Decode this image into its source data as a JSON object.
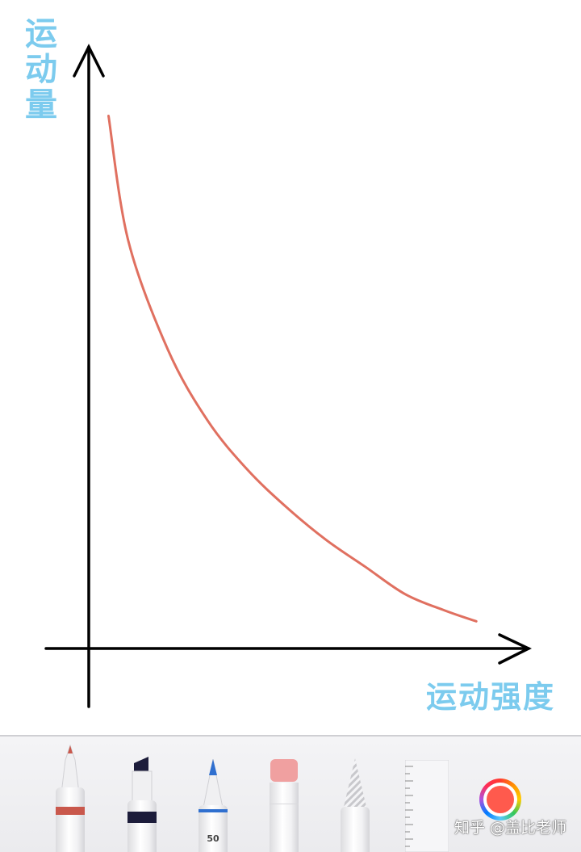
{
  "chart_data": {
    "type": "line",
    "title": "",
    "xlabel": "运动强度",
    "ylabel": "运动量",
    "grid": false,
    "legend": "none",
    "axes_ticks": false,
    "series": [
      {
        "color": "#e07060",
        "x": [
          0.05,
          0.1,
          0.2,
          0.3,
          0.4,
          0.5,
          0.6,
          0.7,
          0.8,
          0.9,
          0.98
        ],
        "y": [
          0.98,
          0.75,
          0.55,
          0.42,
          0.33,
          0.26,
          0.2,
          0.15,
          0.1,
          0.07,
          0.05
        ]
      }
    ],
    "xlim": [
      0,
      1.1
    ],
    "ylim": [
      0,
      1.1
    ]
  },
  "colors": {
    "axis": "#000000",
    "curve": "#e07060",
    "label": "#7ccbee",
    "selected_color": "#ff5a4d"
  },
  "toolbar": {
    "tools": [
      {
        "name": "pen",
        "icon": "pen-icon",
        "color": "#c9584c"
      },
      {
        "name": "marker",
        "icon": "marker-icon",
        "color": "#1c1c3a"
      },
      {
        "name": "pencil",
        "icon": "pencil-icon",
        "color": "#2f6fcf",
        "label": "50"
      },
      {
        "name": "eraser",
        "icon": "eraser-icon",
        "color": "#f0a0a0"
      },
      {
        "name": "lasso",
        "icon": "lasso-icon",
        "color": "#cccccc"
      },
      {
        "name": "ruler",
        "icon": "ruler-icon",
        "color": "#f2f2f2"
      }
    ],
    "color_picker_icon": "color-wheel-icon"
  },
  "watermark": "知乎 @盖比老师"
}
